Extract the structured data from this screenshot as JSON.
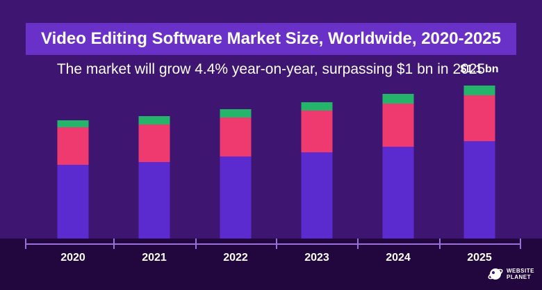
{
  "title": "Video Editing Software Market Size, Worldwide, 2020-2025",
  "subtitle": "The market will grow 4.4% year-on-year, surpassing $1 bn in 2025",
  "logo": {
    "line1": "WEBSITE",
    "line2": "PLANET"
  },
  "colors": {
    "background": "#3e1570",
    "title_box": "#6a31c9",
    "base_band": "#21073e",
    "axis": "#9b6fd9",
    "segment_bottom": "#5b2bcf",
    "segment_middle": "#ee3a6e",
    "segment_top": "#25b56a"
  },
  "chart_data": {
    "type": "bar",
    "stacked": true,
    "categories": [
      "2020",
      "2021",
      "2022",
      "2023",
      "2024",
      "2025"
    ],
    "series": [
      {
        "values": [
          0.53,
          0.55,
          0.59,
          0.62,
          0.66,
          0.7
        ]
      },
      {
        "values": [
          0.27,
          0.27,
          0.28,
          0.3,
          0.31,
          0.33
        ]
      },
      {
        "values": [
          0.05,
          0.06,
          0.06,
          0.06,
          0.07,
          0.07
        ]
      }
    ],
    "annotations": [
      {
        "category": "2025",
        "text": "$1.1 bn"
      }
    ],
    "ylim": [
      0,
      1.1
    ],
    "grid": false,
    "legend": "none"
  }
}
